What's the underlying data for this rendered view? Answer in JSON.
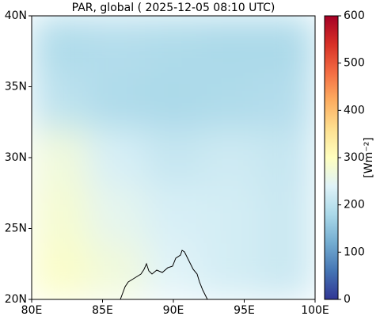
{
  "chart_data": {
    "type": "heatmap",
    "title": "PAR, global ( 2025-12-05 08:10 UTC)",
    "xlim": [
      80,
      100
    ],
    "ylim": [
      20,
      40
    ],
    "xticks": [
      {
        "value": 80,
        "label": "80E"
      },
      {
        "value": 85,
        "label": "85E"
      },
      {
        "value": 90,
        "label": "90E"
      },
      {
        "value": 95,
        "label": "95E"
      },
      {
        "value": 100,
        "label": "100E"
      }
    ],
    "yticks": [
      {
        "value": 20,
        "label": "20N"
      },
      {
        "value": 25,
        "label": "25N"
      },
      {
        "value": 30,
        "label": "30N"
      },
      {
        "value": 35,
        "label": "35N"
      },
      {
        "value": 40,
        "label": "40N"
      }
    ],
    "x": [
      80,
      84,
      88,
      92,
      96,
      100
    ],
    "y": [
      40,
      36,
      32,
      28,
      24,
      20
    ],
    "values": [
      [
        185,
        190,
        185,
        180,
        180
      ],
      [
        200,
        185,
        180,
        185,
        190
      ],
      [
        270,
        230,
        210,
        220,
        210
      ],
      [
        280,
        250,
        230,
        225,
        215
      ],
      [
        290,
        270,
        240,
        225,
        215
      ]
    ],
    "clim": [
      0,
      600
    ],
    "cticks": [
      0,
      100,
      200,
      300,
      400,
      500,
      600
    ],
    "colorbar_label": "[Wm⁻²]",
    "colormap": [
      "#313695",
      "#4575b4",
      "#74add1",
      "#abd9e9",
      "#e0f3f8",
      "#ffffbf",
      "#fee090",
      "#fdae61",
      "#f46d43",
      "#d73027",
      "#a50026"
    ]
  }
}
